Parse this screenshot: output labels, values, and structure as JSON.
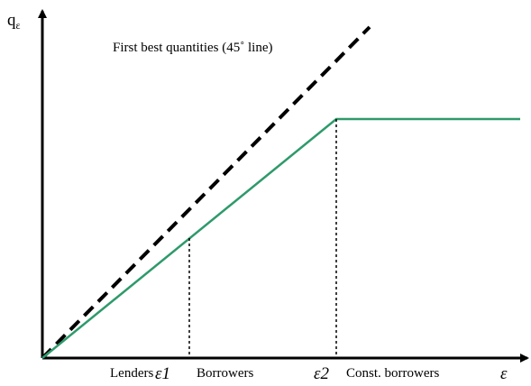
{
  "diagram": {
    "y_axis_label": {
      "base": "q",
      "subscript": "ε"
    },
    "line_label": "First best quantities (45˚ line)",
    "x_axis_labels": [
      "Lenders",
      "ε1",
      "Borrowers",
      "ε2",
      "Const. borrowers",
      "ε"
    ]
  }
}
